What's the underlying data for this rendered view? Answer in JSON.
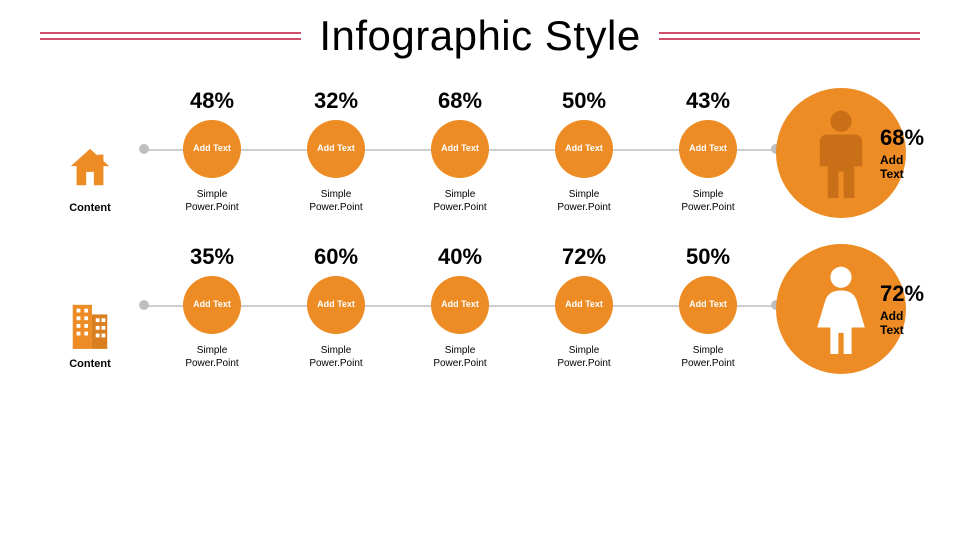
{
  "title": "Infographic Style",
  "type": "infographic",
  "colors": {
    "accent_line": "#d0506b",
    "orange": "#ed8b24",
    "orange_dark": "#da7f1f",
    "sep": "#cfcfcf",
    "dot": "#bfbfbf",
    "text": "#000000",
    "bg": "#ffffff"
  },
  "typography": {
    "title_fontsize": 42,
    "percent_fontsize": 22,
    "circle_label_fontsize": 9,
    "caption_fontsize": 10,
    "left_label_fontsize": 11
  },
  "rows": [
    {
      "icon": "home",
      "left_label": "Content",
      "items": [
        {
          "percent": "48%",
          "circle_label": "Add Text",
          "caption": "Simple\nPower.Point",
          "color": "#ed8b24"
        },
        {
          "percent": "32%",
          "circle_label": "Add Text",
          "caption": "Simple\nPower.Point",
          "color": "#ed8b24"
        },
        {
          "percent": "68%",
          "circle_label": "Add Text",
          "caption": "Simple\nPower.Point",
          "color": "#ed8b24"
        },
        {
          "percent": "50%",
          "circle_label": "Add Text",
          "caption": "Simple\nPower.Point",
          "color": "#ed8b24"
        },
        {
          "percent": "43%",
          "circle_label": "Add Text",
          "caption": "Simple\nPower.Point",
          "color": "#ed8b24"
        }
      ],
      "summary": {
        "percent": "68%",
        "sub": "Add Text",
        "icon": "person-male",
        "circle_color": "#ed8b24"
      }
    },
    {
      "icon": "building",
      "left_label": "Content",
      "items": [
        {
          "percent": "35%",
          "circle_label": "Add Text",
          "caption": "Simple\nPower.Point",
          "color": "#ed8b24"
        },
        {
          "percent": "60%",
          "circle_label": "Add Text",
          "caption": "Simple\nPower.Point",
          "color": "#ed8b24"
        },
        {
          "percent": "40%",
          "circle_label": "Add Text",
          "caption": "Simple\nPower.Point",
          "color": "#ed8b24"
        },
        {
          "percent": "72%",
          "circle_label": "Add Text",
          "caption": "Simple\nPower.Point",
          "color": "#ed8b24"
        },
        {
          "percent": "50%",
          "circle_label": "Add Text",
          "caption": "Simple\nPower.Point",
          "color": "#ed8b24"
        }
      ],
      "summary": {
        "percent": "72%",
        "sub": "Add Text",
        "icon": "person-female",
        "circle_color": "#ed8b24"
      }
    }
  ]
}
